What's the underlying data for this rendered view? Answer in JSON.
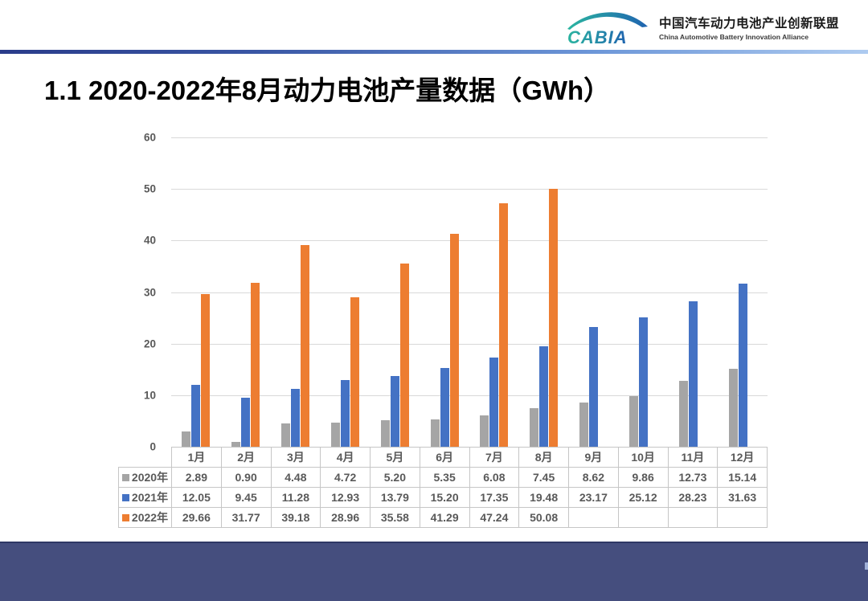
{
  "header": {
    "logo_text": "CABIA",
    "org_name_zh": "中国汽车动力电池产业创新联盟",
    "org_name_en": "China Automotive Battery Innovation Alliance"
  },
  "title": "1.1 2020-2022年8月动力电池产量数据（GWh）",
  "chart_data": {
    "type": "bar",
    "title": "",
    "xlabel": "",
    "ylabel": "",
    "categories": [
      "1月",
      "2月",
      "3月",
      "4月",
      "5月",
      "6月",
      "7月",
      "8月",
      "9月",
      "10月",
      "11月",
      "12月"
    ],
    "series": [
      {
        "name": "2020年",
        "color": "#a5a5a5",
        "values": [
          2.89,
          0.9,
          4.48,
          4.72,
          5.2,
          5.35,
          6.08,
          7.45,
          8.62,
          9.86,
          12.73,
          15.14
        ]
      },
      {
        "name": "2021年",
        "color": "#4472c4",
        "values": [
          12.05,
          9.45,
          11.28,
          12.93,
          13.79,
          15.2,
          17.35,
          19.48,
          23.17,
          25.12,
          28.23,
          31.63
        ]
      },
      {
        "name": "2022年",
        "color": "#ed7d31",
        "values": [
          29.66,
          31.77,
          39.18,
          28.96,
          35.58,
          41.29,
          47.24,
          50.08,
          null,
          null,
          null,
          null
        ]
      }
    ],
    "ylim": [
      0,
      60
    ],
    "yticks": [
      0,
      10,
      20,
      30,
      40,
      50,
      60
    ],
    "grid": true,
    "legend_position": "table-row-labels",
    "gridline_color": "#d9d9d9"
  },
  "colors": {
    "footer_bar": "#454e7e",
    "header_rule_left": "#2a3c8a",
    "header_rule_right": "#aecbf0",
    "logo_teal": "#2bb5a0",
    "logo_blue": "#1f63b0"
  }
}
